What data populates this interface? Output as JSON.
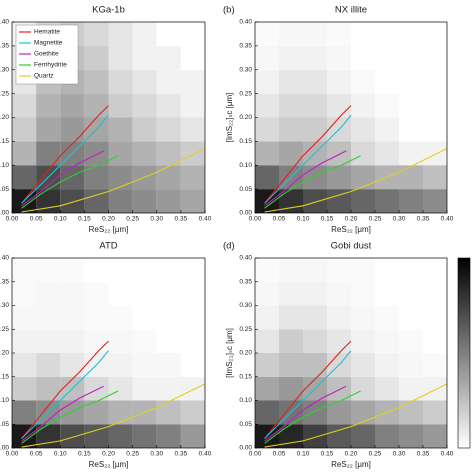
{
  "chart_data": [
    {
      "type": "hist2d",
      "title": "KGa-1b",
      "xlabel": "ReS₂₂ [μm]",
      "xbins": [
        0,
        0.05,
        0.1,
        0.15,
        0.2,
        0.25,
        0.3,
        0.35,
        0.4
      ],
      "ybins": [
        0,
        0.05,
        0.1,
        0.15,
        0.2,
        0.25,
        0.3,
        0.35,
        0.4
      ],
      "z": [
        [
          0.9,
          0.8,
          0.7,
          0.6,
          0.5,
          0.45,
          0.4,
          0.35
        ],
        [
          0.6,
          0.7,
          0.6,
          0.5,
          0.45,
          0.4,
          0.35,
          0.3
        ],
        [
          0.3,
          0.5,
          0.5,
          0.45,
          0.35,
          0.3,
          0.25,
          0.2
        ],
        [
          0.2,
          0.35,
          0.4,
          0.35,
          0.3,
          0.2,
          0.15,
          0.1
        ],
        [
          0.15,
          0.3,
          0.35,
          0.3,
          0.2,
          0.15,
          0.1,
          0.05
        ],
        [
          0.1,
          0.25,
          0.3,
          0.25,
          0.15,
          0.1,
          0.05,
          0.05
        ],
        [
          0.1,
          0.2,
          0.25,
          0.2,
          0.1,
          0.05,
          0.05,
          0
        ],
        [
          0.05,
          0.15,
          0.2,
          0.15,
          0.1,
          0.05,
          0,
          0
        ]
      ],
      "series": [
        {
          "name": "Hematite",
          "color": "#e02020",
          "x": [
            0.02,
            0.06,
            0.1,
            0.14,
            0.18,
            0.2
          ],
          "values": [
            0.02,
            0.07,
            0.12,
            0.16,
            0.205,
            0.225
          ]
        },
        {
          "name": "Magnetite",
          "color": "#20c0d0",
          "x": [
            0.02,
            0.06,
            0.1,
            0.14,
            0.18,
            0.2
          ],
          "values": [
            0.02,
            0.06,
            0.1,
            0.14,
            0.18,
            0.205
          ]
        },
        {
          "name": "Goethite",
          "color": "#c020c0",
          "x": [
            0.02,
            0.06,
            0.1,
            0.14,
            0.17,
            0.19
          ],
          "values": [
            0.015,
            0.045,
            0.08,
            0.105,
            0.12,
            0.13
          ]
        },
        {
          "name": "Ferrihydrite",
          "color": "#30d030",
          "x": [
            0.02,
            0.06,
            0.1,
            0.14,
            0.18,
            0.22
          ],
          "values": [
            0.01,
            0.04,
            0.065,
            0.085,
            0.1,
            0.12
          ]
        },
        {
          "name": "Quartz",
          "color": "#e0d020",
          "x": [
            0.02,
            0.1,
            0.2,
            0.3,
            0.4
          ],
          "values": [
            0.002,
            0.015,
            0.045,
            0.085,
            0.135
          ]
        }
      ],
      "xlim": [
        0,
        0.4
      ],
      "ylim": [
        0,
        0.4
      ],
      "xticks": [
        {
          "value": 0,
          "label": "0.00"
        },
        {
          "value": 0.05,
          "label": "0.05"
        },
        {
          "value": 0.1,
          "label": "0.10"
        },
        {
          "value": 0.15,
          "label": "0.15"
        },
        {
          "value": 0.2,
          "label": "0.20"
        },
        {
          "value": 0.25,
          "label": "0.25"
        },
        {
          "value": 0.3,
          "label": "0.30"
        },
        {
          "value": 0.35,
          "label": "0.35"
        },
        {
          "value": 0.4,
          "label": "0.40"
        }
      ],
      "yticks": [
        {
          "value": 0,
          "label": "0.00"
        },
        {
          "value": 0.05,
          "label": "0.05"
        },
        {
          "value": 0.1,
          "label": "0.10"
        },
        {
          "value": 0.15,
          "label": "0.15"
        },
        {
          "value": 0.2,
          "label": "0.20"
        },
        {
          "value": 0.25,
          "label": "0.25"
        },
        {
          "value": 0.3,
          "label": "0.30"
        },
        {
          "value": 0.35,
          "label": "0.35"
        },
        {
          "value": 0.4,
          "label": "0.40"
        }
      ],
      "legend": "upper left"
    },
    {
      "type": "hist2d",
      "panel": "(b)",
      "title": "NX illite",
      "xlabel": "ReS₂₂ [μm]",
      "ylabel": "[ImS₂₂]ₛc [μm]",
      "xbins": [
        0,
        0.05,
        0.1,
        0.15,
        0.2,
        0.25,
        0.3,
        0.35,
        0.4
      ],
      "ybins": [
        0,
        0.05,
        0.1,
        0.15,
        0.2,
        0.25,
        0.3,
        0.35,
        0.4
      ],
      "z": [
        [
          0.9,
          0.8,
          0.7,
          0.65,
          0.6,
          0.55,
          0.5,
          0.45
        ],
        [
          0.6,
          0.5,
          0.45,
          0.4,
          0.35,
          0.3,
          0.3,
          0.25
        ],
        [
          0.3,
          0.35,
          0.3,
          0.25,
          0.15,
          0.1,
          0.05,
          0.05
        ],
        [
          0.15,
          0.2,
          0.2,
          0.15,
          0.1,
          0.05,
          0,
          0
        ],
        [
          0.1,
          0.15,
          0.15,
          0.1,
          0.05,
          0.02,
          0,
          0
        ],
        [
          0.05,
          0.1,
          0.1,
          0.05,
          0.02,
          0,
          0,
          0
        ],
        [
          0.03,
          0.05,
          0.05,
          0.03,
          0,
          0,
          0,
          0
        ],
        [
          0.02,
          0.03,
          0.03,
          0.02,
          0,
          0,
          0,
          0
        ]
      ],
      "series": [
        {
          "color": "#e02020",
          "x": [
            0.02,
            0.06,
            0.1,
            0.14,
            0.18,
            0.2
          ],
          "values": [
            0.02,
            0.07,
            0.12,
            0.16,
            0.205,
            0.225
          ]
        },
        {
          "color": "#20c0d0",
          "x": [
            0.02,
            0.06,
            0.1,
            0.14,
            0.18,
            0.2
          ],
          "values": [
            0.02,
            0.06,
            0.1,
            0.14,
            0.18,
            0.205
          ]
        },
        {
          "color": "#c020c0",
          "x": [
            0.02,
            0.06,
            0.1,
            0.14,
            0.17,
            0.19
          ],
          "values": [
            0.015,
            0.045,
            0.08,
            0.105,
            0.12,
            0.13
          ]
        },
        {
          "color": "#30d030",
          "x": [
            0.02,
            0.06,
            0.1,
            0.14,
            0.18,
            0.22
          ],
          "values": [
            0.01,
            0.04,
            0.065,
            0.085,
            0.1,
            0.12
          ]
        },
        {
          "color": "#e0d020",
          "x": [
            0.02,
            0.1,
            0.2,
            0.3,
            0.4
          ],
          "values": [
            0.002,
            0.015,
            0.045,
            0.085,
            0.135
          ]
        }
      ],
      "xlim": [
        0,
        0.4
      ],
      "ylim": [
        0,
        0.4
      ],
      "xticks": [
        {
          "value": 0,
          "label": "0.00"
        },
        {
          "value": 0.05,
          "label": "0.05"
        },
        {
          "value": 0.1,
          "label": "0.10"
        },
        {
          "value": 0.15,
          "label": "0.15"
        },
        {
          "value": 0.2,
          "label": "0.20"
        },
        {
          "value": 0.25,
          "label": "0.25"
        },
        {
          "value": 0.3,
          "label": "0.30"
        },
        {
          "value": 0.35,
          "label": "0.35"
        },
        {
          "value": 0.4,
          "label": "0.40"
        }
      ],
      "yticks": [
        {
          "value": 0,
          "label": "0.00"
        },
        {
          "value": 0.05,
          "label": "0.05"
        },
        {
          "value": 0.1,
          "label": "0.10"
        },
        {
          "value": 0.15,
          "label": "0.15"
        },
        {
          "value": 0.2,
          "label": "0.20"
        },
        {
          "value": 0.25,
          "label": "0.25"
        },
        {
          "value": 0.3,
          "label": "0.30"
        },
        {
          "value": 0.35,
          "label": "0.35"
        },
        {
          "value": 0.4,
          "label": "0.40"
        }
      ]
    },
    {
      "type": "hist2d",
      "title": "ATD",
      "xlabel": "ReS₂₂ [μm]",
      "xbins": [
        0,
        0.05,
        0.1,
        0.15,
        0.2,
        0.25,
        0.3,
        0.35,
        0.4
      ],
      "ybins": [
        0,
        0.05,
        0.1,
        0.15,
        0.2,
        0.25,
        0.3,
        0.35,
        0.4
      ],
      "z": [
        [
          0.9,
          0.8,
          0.7,
          0.65,
          0.6,
          0.55,
          0.5,
          0.4
        ],
        [
          0.5,
          0.45,
          0.4,
          0.35,
          0.3,
          0.3,
          0.25,
          0.2
        ],
        [
          0.2,
          0.25,
          0.25,
          0.15,
          0.1,
          0.05,
          0.05,
          0.05
        ],
        [
          0.1,
          0.15,
          0.1,
          0.05,
          0.05,
          0.03,
          0.03,
          0
        ],
        [
          0.05,
          0.05,
          0.05,
          0.03,
          0.03,
          0.02,
          0,
          0
        ],
        [
          0.03,
          0.03,
          0.03,
          0.02,
          0.02,
          0,
          0,
          0
        ],
        [
          0.02,
          0.03,
          0.03,
          0.02,
          0,
          0,
          0,
          0
        ],
        [
          0.02,
          0.02,
          0.02,
          0,
          0,
          0,
          0,
          0
        ]
      ],
      "series": [
        {
          "color": "#e02020",
          "x": [
            0.02,
            0.06,
            0.1,
            0.14,
            0.18,
            0.2
          ],
          "values": [
            0.02,
            0.07,
            0.12,
            0.16,
            0.205,
            0.225
          ]
        },
        {
          "color": "#20c0d0",
          "x": [
            0.02,
            0.06,
            0.1,
            0.14,
            0.18,
            0.2
          ],
          "values": [
            0.02,
            0.06,
            0.1,
            0.14,
            0.18,
            0.205
          ]
        },
        {
          "color": "#c020c0",
          "x": [
            0.02,
            0.06,
            0.1,
            0.14,
            0.17,
            0.19
          ],
          "values": [
            0.015,
            0.045,
            0.08,
            0.105,
            0.12,
            0.13
          ]
        },
        {
          "color": "#30d030",
          "x": [
            0.02,
            0.06,
            0.1,
            0.14,
            0.18,
            0.22
          ],
          "values": [
            0.01,
            0.04,
            0.065,
            0.085,
            0.1,
            0.12
          ]
        },
        {
          "color": "#e0d020",
          "x": [
            0.02,
            0.1,
            0.2,
            0.3,
            0.4
          ],
          "values": [
            0.002,
            0.015,
            0.045,
            0.085,
            0.135
          ]
        }
      ],
      "xlim": [
        0,
        0.4
      ],
      "ylim": [
        0,
        0.4
      ],
      "xticks": [
        {
          "value": 0,
          "label": "0.00"
        },
        {
          "value": 0.05,
          "label": "0.05"
        },
        {
          "value": 0.1,
          "label": "0.10"
        },
        {
          "value": 0.15,
          "label": "0.15"
        },
        {
          "value": 0.2,
          "label": "0.20"
        },
        {
          "value": 0.25,
          "label": "0.25"
        },
        {
          "value": 0.3,
          "label": "0.30"
        },
        {
          "value": 0.35,
          "label": "0.35"
        },
        {
          "value": 0.4,
          "label": "0.40"
        }
      ],
      "yticks": [
        {
          "value": 0,
          "label": "0.00"
        },
        {
          "value": 0.05,
          "label": "0.05"
        },
        {
          "value": 0.1,
          "label": "0.10"
        },
        {
          "value": 0.15,
          "label": "0.15"
        },
        {
          "value": 0.2,
          "label": "0.20"
        },
        {
          "value": 0.25,
          "label": "0.25"
        },
        {
          "value": 0.3,
          "label": "0.30"
        },
        {
          "value": 0.35,
          "label": "0.35"
        },
        {
          "value": 0.4,
          "label": "0.40"
        }
      ]
    },
    {
      "type": "hist2d",
      "panel": "(d)",
      "title": "Gobi dust",
      "xlabel": "ReS₂₂ [μm]",
      "ylabel": "[ImS₂₂]ₛc [μm]",
      "xbins": [
        0,
        0.05,
        0.1,
        0.15,
        0.2,
        0.25,
        0.3,
        0.35,
        0.4
      ],
      "ybins": [
        0,
        0.05,
        0.1,
        0.15,
        0.2,
        0.25,
        0.3,
        0.35,
        0.4
      ],
      "z": [
        [
          0.9,
          0.85,
          0.75,
          0.65,
          0.6,
          0.5,
          0.45,
          0.4
        ],
        [
          0.6,
          0.55,
          0.5,
          0.4,
          0.35,
          0.3,
          0.25,
          0.2
        ],
        [
          0.35,
          0.4,
          0.35,
          0.25,
          0.15,
          0.1,
          0.05,
          0.05
        ],
        [
          0.2,
          0.25,
          0.25,
          0.15,
          0.1,
          0.05,
          0.03,
          0.02
        ],
        [
          0.1,
          0.2,
          0.15,
          0.1,
          0.05,
          0.03,
          0.02,
          0
        ],
        [
          0.05,
          0.1,
          0.1,
          0.05,
          0.03,
          0.02,
          0,
          0
        ],
        [
          0.03,
          0.05,
          0.05,
          0.03,
          0.02,
          0,
          0,
          0
        ],
        [
          0.02,
          0.03,
          0.03,
          0.02,
          0.02,
          0,
          0,
          0
        ]
      ],
      "series": [
        {
          "color": "#e02020",
          "x": [
            0.02,
            0.06,
            0.1,
            0.14,
            0.18,
            0.2
          ],
          "values": [
            0.02,
            0.07,
            0.12,
            0.16,
            0.205,
            0.225
          ]
        },
        {
          "color": "#20c0d0",
          "x": [
            0.02,
            0.06,
            0.1,
            0.14,
            0.18,
            0.2
          ],
          "values": [
            0.02,
            0.06,
            0.1,
            0.14,
            0.18,
            0.205
          ]
        },
        {
          "color": "#c020c0",
          "x": [
            0.02,
            0.06,
            0.1,
            0.14,
            0.17,
            0.19
          ],
          "values": [
            0.015,
            0.045,
            0.08,
            0.105,
            0.12,
            0.13
          ]
        },
        {
          "color": "#30d030",
          "x": [
            0.02,
            0.06,
            0.1,
            0.14,
            0.18,
            0.22
          ],
          "values": [
            0.01,
            0.04,
            0.065,
            0.085,
            0.1,
            0.12
          ]
        },
        {
          "color": "#e0d020",
          "x": [
            0.02,
            0.1,
            0.2,
            0.3,
            0.4
          ],
          "values": [
            0.002,
            0.015,
            0.045,
            0.085,
            0.135
          ]
        }
      ],
      "xlim": [
        0,
        0.4
      ],
      "ylim": [
        0,
        0.4
      ],
      "xticks": [
        {
          "value": 0,
          "label": "0.00"
        },
        {
          "value": 0.05,
          "label": "0.05"
        },
        {
          "value": 0.1,
          "label": "0.10"
        },
        {
          "value": 0.15,
          "label": "0.15"
        },
        {
          "value": 0.2,
          "label": "0.20"
        },
        {
          "value": 0.25,
          "label": "0.25"
        },
        {
          "value": 0.3,
          "label": "0.30"
        },
        {
          "value": 0.35,
          "label": "0.35"
        },
        {
          "value": 0.4,
          "label": "0.40"
        }
      ],
      "yticks": [
        {
          "value": 0,
          "label": "0.00"
        },
        {
          "value": 0.05,
          "label": "0.05"
        },
        {
          "value": 0.1,
          "label": "0.10"
        },
        {
          "value": 0.15,
          "label": "0.15"
        },
        {
          "value": 0.2,
          "label": "0.20"
        },
        {
          "value": 0.25,
          "label": "0.25"
        },
        {
          "value": 0.3,
          "label": "0.30"
        },
        {
          "value": 0.35,
          "label": "0.35"
        },
        {
          "value": 0.4,
          "label": "0.40"
        }
      ]
    }
  ]
}
